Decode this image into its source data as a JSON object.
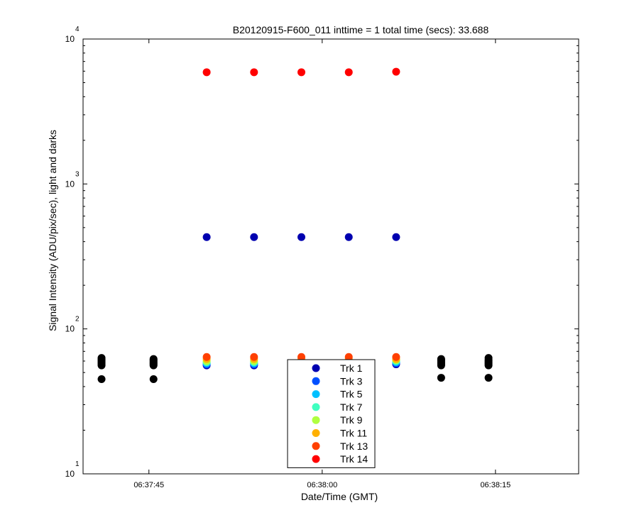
{
  "chart_data": {
    "type": "scatter",
    "title": "B20120915-F600_011 inttime = 1 total time (secs): 33.688",
    "xlabel": "Date/Time (GMT)",
    "ylabel": "Signal Intensity (ADU/pix/sec), light and darks",
    "yscale": "log",
    "ylim": [
      10,
      10000
    ],
    "xlim": [
      "06:37:39.3",
      "06:38:22.2"
    ],
    "x_ticks": [
      "06:37:45",
      "06:38:00",
      "06:38:15"
    ],
    "y_ticks": [
      {
        "base": "10",
        "exp": "1"
      },
      {
        "base": "10",
        "exp": "2"
      },
      {
        "base": "10",
        "exp": "3"
      },
      {
        "base": "10",
        "exp": "4"
      }
    ],
    "grid": false,
    "legend": "bottom-center",
    "series": [
      {
        "name": "Trk 1",
        "color": "#0000b0",
        "x": [
          "06:37:50.0",
          "06:37:54.1",
          "06:37:58.2",
          "06:38:02.3",
          "06:38:06.4"
        ],
        "y": [
          56,
          56,
          57,
          57,
          57
        ]
      },
      {
        "name": "Trk 3",
        "color": "#0050ff",
        "x": [
          "06:37:50.0",
          "06:37:54.1",
          "06:37:58.2",
          "06:38:02.3",
          "06:38:06.4"
        ],
        "y": [
          57,
          57,
          58,
          58,
          58
        ]
      },
      {
        "name": "Trk 5",
        "color": "#00c0ff",
        "x": [
          "06:37:50.0",
          "06:37:54.1",
          "06:37:58.2",
          "06:38:02.3",
          "06:38:06.4"
        ],
        "y": [
          58,
          58,
          59,
          59,
          59
        ]
      },
      {
        "name": "Trk 7",
        "color": "#40ffc0",
        "x": [
          "06:37:50.0",
          "06:37:54.1",
          "06:37:58.2",
          "06:38:02.3",
          "06:38:06.4"
        ],
        "y": [
          59,
          59,
          60,
          60,
          60
        ]
      },
      {
        "name": "Trk 9",
        "color": "#b0ff40",
        "x": [
          "06:37:50.0",
          "06:37:54.1",
          "06:37:58.2",
          "06:38:02.3",
          "06:38:06.4"
        ],
        "y": [
          60,
          60,
          61,
          61,
          61
        ]
      },
      {
        "name": "Trk 11",
        "color": "#ffb000",
        "x": [
          "06:37:50.0",
          "06:37:54.1",
          "06:37:58.2",
          "06:38:02.3",
          "06:38:06.4"
        ],
        "y": [
          62,
          62,
          62,
          62,
          62
        ]
      },
      {
        "name": "Trk 13",
        "color": "#ff4000",
        "x": [
          "06:37:50.0",
          "06:37:54.1",
          "06:37:58.2",
          "06:38:02.3",
          "06:38:06.4"
        ],
        "y": [
          64,
          64,
          64,
          64,
          64
        ]
      },
      {
        "name": "Trk 14",
        "color": "#ff0000",
        "x": [
          "06:37:50.0",
          "06:37:54.1",
          "06:37:58.2",
          "06:38:02.3",
          "06:38:06.4"
        ],
        "y": [
          5900,
          5900,
          5900,
          5900,
          5950
        ]
      }
    ],
    "unlabeled_series": [
      {
        "color": "#0000b0",
        "x": [
          "06:37:50.0",
          "06:37:54.1",
          "06:37:58.2",
          "06:38:02.3",
          "06:38:06.4"
        ],
        "y": [
          430,
          430,
          430,
          430,
          430
        ]
      },
      {
        "color": "#000000",
        "x": [
          "06:37:40.9",
          "06:37:40.9",
          "06:37:40.9",
          "06:37:40.9",
          "06:37:40.9",
          "06:37:40.9",
          "06:37:40.9",
          "06:37:40.9",
          "06:37:40.9",
          "06:37:45.4",
          "06:37:45.4",
          "06:37:45.4",
          "06:37:45.4",
          "06:37:45.4",
          "06:37:45.4",
          "06:37:45.4",
          "06:37:45.4",
          "06:38:10.3",
          "06:38:10.3",
          "06:38:10.3",
          "06:38:10.3",
          "06:38:10.3",
          "06:38:10.3",
          "06:38:10.3",
          "06:38:10.3",
          "06:38:14.4",
          "06:38:14.4",
          "06:38:14.4",
          "06:38:14.4",
          "06:38:14.4",
          "06:38:14.4",
          "06:38:14.4",
          "06:38:14.4"
        ],
        "y": [
          45,
          56,
          57,
          58,
          59,
          60,
          61,
          62,
          63,
          45,
          56,
          57,
          58,
          59,
          60,
          61,
          62,
          46,
          56,
          57,
          58,
          59,
          60,
          61,
          62,
          46,
          56,
          57,
          58,
          59,
          60,
          61,
          63
        ]
      }
    ]
  }
}
